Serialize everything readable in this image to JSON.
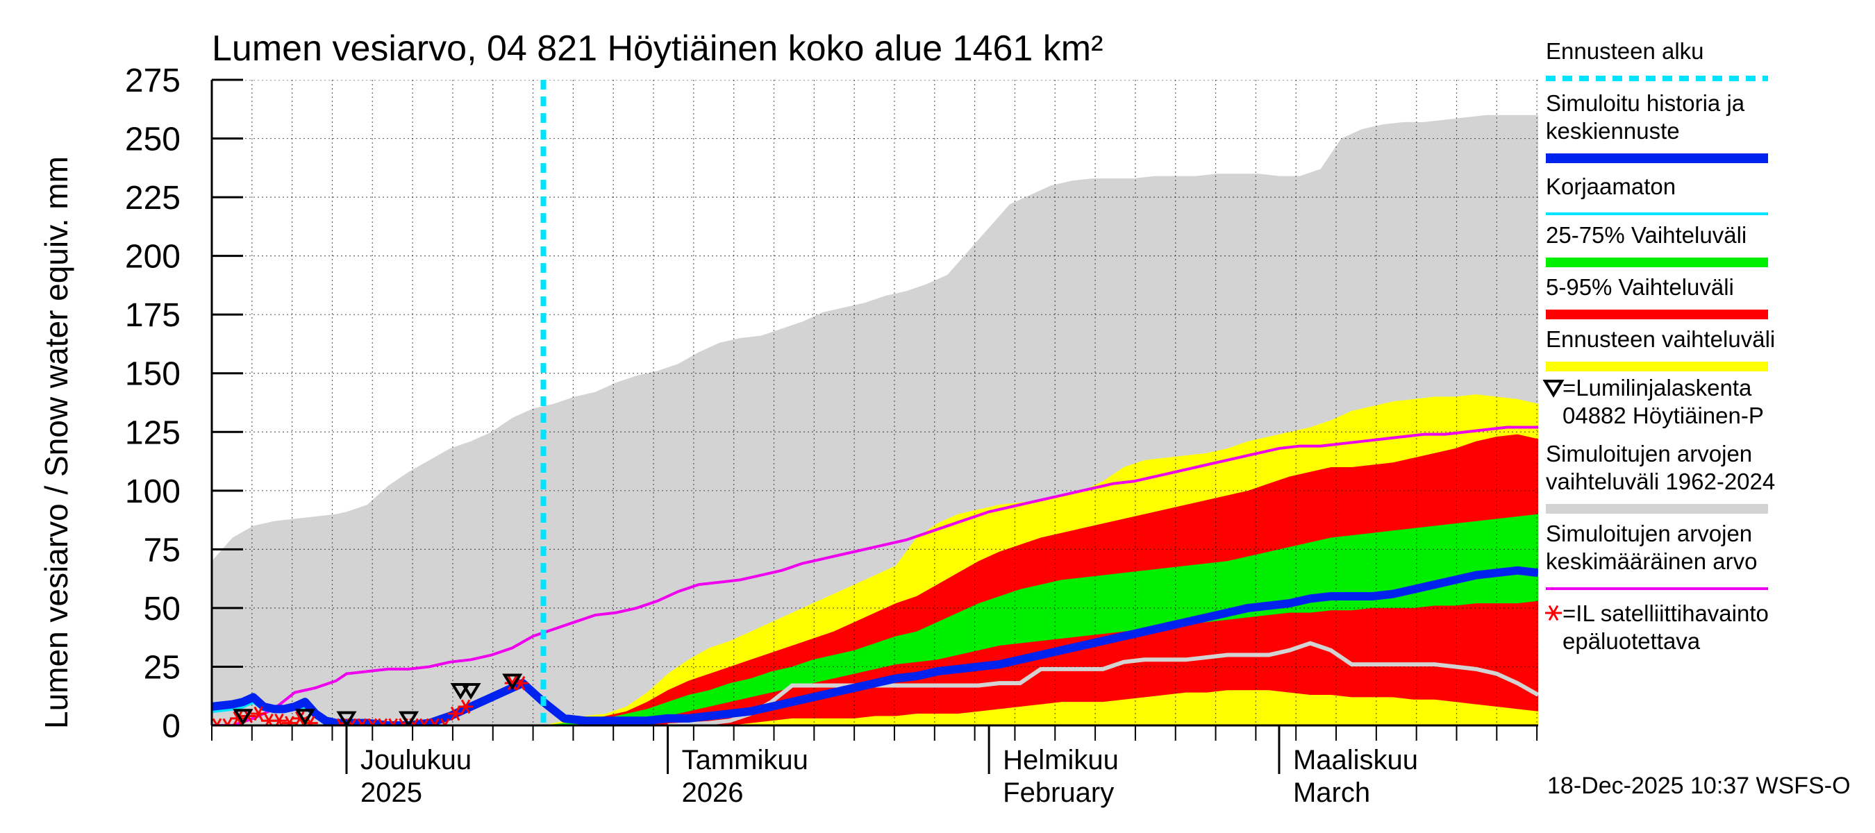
{
  "chart_data": {
    "type": "area",
    "title": "Lumen vesiarvo, 04 821 Höytiäinen koko alue 1461 km²",
    "ylabel": "Lumen vesiarvo / Snow water equiv.    mm",
    "xlabel": "",
    "timestamp": "18-Dec-2025 10:37 WSFS-O",
    "ylim": [
      0,
      275
    ],
    "yticks": [
      0,
      25,
      50,
      75,
      100,
      125,
      150,
      175,
      200,
      225,
      250,
      275
    ],
    "xlim_days": [
      0,
      128
    ],
    "forecast_start_day": 32,
    "month_labels": [
      {
        "day": 13,
        "line1": "Joulukuu",
        "line2": "2025"
      },
      {
        "day": 44,
        "line1": "Tammikuu",
        "line2": "2026"
      },
      {
        "day": 75,
        "line1": "Helmikuu",
        "line2": "February"
      },
      {
        "day": 103,
        "line1": "Maaliskuu",
        "line2": "March"
      }
    ],
    "colors": {
      "hist_range": "#d3d3d3",
      "ennuste": "#ffff00",
      "p5_95": "#ff0000",
      "p25_75": "#00ee00",
      "simulated": "#0022ee",
      "uncorrected": "#00e5ff",
      "mean": "#ee00ee",
      "forecast_start": "#00e5ff",
      "satellite": "#ff0000",
      "snowline": "#000000"
    },
    "hist_range": {
      "x": [
        0,
        2,
        4,
        6,
        8,
        10,
        12,
        13,
        15,
        17,
        19,
        21,
        23,
        25,
        27,
        29,
        31,
        33,
        35,
        37,
        39,
        41,
        43,
        45,
        47,
        49,
        51,
        53,
        55,
        57,
        59,
        61,
        63,
        65,
        67,
        69,
        71,
        73,
        75,
        77,
        79,
        81,
        83,
        85,
        87,
        89,
        91,
        93,
        95,
        97,
        99,
        101,
        103,
        105,
        107,
        109,
        111,
        113,
        115,
        117,
        119,
        121,
        123,
        125,
        127,
        128
      ],
      "upper": [
        70,
        80,
        85,
        87,
        88,
        89,
        90,
        91,
        94,
        102,
        108,
        113,
        118,
        121,
        125,
        131,
        135,
        137,
        140,
        142,
        146,
        149,
        151,
        154,
        159,
        163,
        165,
        166,
        169,
        172,
        176,
        178,
        180,
        183,
        185,
        188,
        192,
        202,
        212,
        222,
        226,
        230,
        232,
        233,
        233,
        233,
        234,
        234,
        234,
        235,
        235,
        235,
        234,
        234,
        237,
        250,
        254,
        256,
        257,
        257,
        258,
        259,
        260,
        260,
        260,
        260
      ],
      "lower": [
        0,
        0,
        0,
        0,
        0,
        0,
        0,
        0,
        0,
        0,
        0,
        0,
        0,
        0,
        0,
        0,
        0,
        0,
        0,
        0,
        0,
        0,
        0,
        0,
        0,
        0,
        0,
        0,
        0,
        0,
        0,
        0,
        0,
        0,
        0,
        0,
        0,
        0,
        0,
        0,
        0,
        0,
        0,
        0,
        0,
        0,
        0,
        0,
        0,
        0,
        0,
        0,
        0,
        0,
        0,
        0,
        0,
        0,
        0,
        0,
        0,
        0,
        0,
        0,
        0,
        0
      ]
    },
    "forecast": {
      "x": [
        32,
        34,
        36,
        38,
        40,
        42,
        44,
        46,
        48,
        50,
        52,
        54,
        56,
        58,
        60,
        62,
        64,
        66,
        68,
        70,
        72,
        74,
        76,
        78,
        80,
        82,
        84,
        86,
        88,
        90,
        92,
        94,
        96,
        98,
        100,
        102,
        104,
        106,
        108,
        110,
        112,
        114,
        116,
        118,
        120,
        122,
        124,
        126,
        128
      ],
      "ennuste_upper": [
        0,
        2,
        4,
        5,
        8,
        14,
        22,
        28,
        33,
        36,
        40,
        44,
        48,
        52,
        56,
        60,
        64,
        68,
        80,
        86,
        90,
        92,
        94,
        95,
        96,
        98,
        100,
        104,
        110,
        113,
        114,
        115,
        116,
        118,
        121,
        123,
        125,
        127,
        130,
        134,
        136,
        138,
        139,
        140,
        140,
        141,
        140,
        139,
        137
      ],
      "ennuste_lower": [
        0,
        0,
        0,
        0,
        0,
        0,
        0,
        0,
        0,
        0,
        0,
        0,
        0,
        0,
        0,
        0,
        0,
        0,
        0,
        0,
        0,
        0,
        0,
        0,
        0,
        0,
        0,
        0,
        0,
        0,
        0,
        0,
        0,
        0,
        0,
        0,
        0,
        0,
        0,
        0,
        0,
        0,
        0,
        0,
        0,
        0,
        0,
        0,
        0
      ],
      "p95": [
        0,
        1,
        2,
        4,
        6,
        10,
        15,
        19,
        22,
        25,
        28,
        31,
        34,
        37,
        40,
        44,
        48,
        52,
        55,
        60,
        65,
        70,
        74,
        77,
        80,
        82,
        84,
        86,
        88,
        90,
        92,
        94,
        96,
        98,
        100,
        103,
        106,
        108,
        110,
        110,
        111,
        112,
        114,
        116,
        118,
        121,
        123,
        124,
        122
      ],
      "p5": [
        0,
        0,
        0,
        0,
        0,
        0,
        0,
        0,
        0,
        0,
        1,
        2,
        3,
        3,
        3,
        3,
        4,
        4,
        5,
        5,
        5,
        6,
        7,
        8,
        9,
        10,
        10,
        10,
        11,
        12,
        13,
        14,
        14,
        15,
        15,
        15,
        14,
        13,
        13,
        12,
        12,
        12,
        11,
        11,
        10,
        9,
        8,
        7,
        6
      ],
      "p75": [
        0,
        1,
        2,
        3,
        5,
        7,
        10,
        13,
        15,
        18,
        20,
        23,
        25,
        28,
        30,
        32,
        35,
        38,
        40,
        44,
        48,
        52,
        55,
        58,
        60,
        62,
        63,
        64,
        65,
        66,
        67,
        68,
        69,
        70,
        72,
        74,
        76,
        78,
        80,
        81,
        82,
        83,
        84,
        85,
        86,
        87,
        88,
        89,
        90
      ],
      "p25": [
        0,
        0,
        0,
        1,
        2,
        3,
        4,
        6,
        8,
        10,
        12,
        14,
        16,
        18,
        20,
        22,
        24,
        26,
        27,
        28,
        30,
        32,
        34,
        35,
        36,
        37,
        38,
        39,
        40,
        41,
        42,
        43,
        44,
        45,
        46,
        47,
        48,
        48,
        49,
        49,
        50,
        50,
        50,
        51,
        51,
        52,
        52,
        52,
        53
      ]
    },
    "mean": {
      "x": [
        0,
        2,
        4,
        6,
        8,
        10,
        12,
        13,
        15,
        17,
        19,
        21,
        23,
        25,
        27,
        29,
        31,
        33,
        35,
        37,
        39,
        41,
        43,
        45,
        47,
        49,
        51,
        53,
        55,
        57,
        59,
        61,
        63,
        65,
        67,
        69,
        71,
        73,
        75,
        77,
        79,
        81,
        83,
        85,
        87,
        89,
        91,
        93,
        95,
        97,
        99,
        101,
        103,
        105,
        107,
        109,
        111,
        113,
        115,
        117,
        119,
        121,
        123,
        125,
        127,
        128
      ],
      "values": [
        0,
        0,
        3,
        7,
        14,
        16,
        19,
        22,
        23,
        24,
        24,
        25,
        27,
        28,
        30,
        33,
        38,
        41,
        44,
        47,
        48,
        50,
        53,
        57,
        60,
        61,
        62,
        64,
        66,
        69,
        71,
        73,
        75,
        77,
        79,
        82,
        85,
        88,
        91,
        93,
        95,
        97,
        99,
        101,
        103,
        104,
        106,
        108,
        110,
        112,
        114,
        116,
        118,
        119,
        119,
        120,
        121,
        122,
        123,
        124,
        124,
        125,
        126,
        127,
        127,
        127
      ]
    },
    "simulated": {
      "x": [
        0,
        2,
        3,
        4,
        5,
        6,
        7,
        8,
        9,
        10,
        11,
        12,
        13,
        14,
        15,
        17,
        18,
        19,
        21,
        23,
        25,
        27,
        28,
        29,
        30,
        31,
        32,
        34,
        36,
        38,
        40,
        42,
        44,
        46,
        48,
        50,
        52,
        54,
        56,
        58,
        60,
        62,
        64,
        66,
        68,
        70,
        72,
        74,
        76,
        78,
        80,
        82,
        84,
        86,
        88,
        90,
        92,
        94,
        96,
        98,
        100,
        102,
        104,
        106,
        108,
        110,
        112,
        114,
        116,
        118,
        120,
        122,
        124,
        126,
        128
      ],
      "values": [
        8,
        9,
        10,
        12,
        8,
        7,
        7,
        8,
        10,
        5,
        2,
        1,
        1,
        1,
        1,
        0,
        0,
        0,
        1,
        4,
        8,
        12,
        14,
        16,
        18,
        14,
        10,
        3,
        2,
        2,
        2,
        2,
        3,
        3,
        4,
        5,
        6,
        8,
        10,
        12,
        14,
        16,
        18,
        20,
        21,
        23,
        24,
        25,
        26,
        28,
        30,
        32,
        34,
        36,
        38,
        40,
        42,
        44,
        46,
        48,
        50,
        51,
        52,
        54,
        55,
        55,
        55,
        56,
        58,
        60,
        62,
        64,
        65,
        66,
        65
      ]
    },
    "uncorrected": {
      "x": [
        0,
        2,
        3,
        4,
        5,
        6,
        7,
        8,
        9,
        10,
        11,
        12,
        13,
        15,
        17,
        19,
        21,
        23,
        25,
        27,
        28,
        29,
        30,
        31,
        32,
        34,
        36,
        38,
        40,
        42,
        44,
        46,
        48,
        50
      ],
      "values": [
        6,
        7,
        8,
        10,
        7,
        6,
        6,
        7,
        8,
        4,
        2,
        1,
        1,
        1,
        0,
        0,
        1,
        3,
        7,
        11,
        13,
        15,
        17,
        13,
        9,
        3,
        2,
        2,
        2,
        2,
        2,
        3,
        3,
        4
      ]
    },
    "lower_sim": {
      "x": [
        44,
        48,
        50,
        52,
        54,
        56,
        58,
        60,
        62,
        64,
        66,
        68,
        70,
        72,
        74,
        76,
        78,
        80,
        82,
        84,
        86,
        88,
        90,
        92,
        94,
        96,
        98,
        100,
        102,
        104,
        106,
        108,
        110,
        112,
        114,
        116,
        118,
        120,
        122,
        124,
        126,
        128
      ],
      "values": [
        0,
        1,
        2,
        5,
        10,
        17,
        17,
        17,
        17,
        17,
        17,
        17,
        17,
        17,
        17,
        18,
        18,
        24,
        24,
        24,
        24,
        27,
        28,
        28,
        28,
        29,
        30,
        30,
        30,
        32,
        35,
        32,
        26,
        26,
        26,
        26,
        26,
        25,
        24,
        22,
        18,
        13
      ]
    },
    "snowline_marks": [
      {
        "day": 3,
        "value": 2
      },
      {
        "day": 9,
        "value": 2
      },
      {
        "day": 13,
        "value": 1
      },
      {
        "day": 19,
        "value": 1
      },
      {
        "day": 24,
        "value": 13
      },
      {
        "day": 25,
        "value": 13
      },
      {
        "day": 29,
        "value": 17
      }
    ],
    "satellite_marks": [
      {
        "day": 0.5,
        "value": 0
      },
      {
        "day": 1.5,
        "value": 0
      },
      {
        "day": 2.5,
        "value": 3
      },
      {
        "day": 3.5,
        "value": 4
      },
      {
        "day": 4.5,
        "value": 5
      },
      {
        "day": 5.5,
        "value": 2
      },
      {
        "day": 6.5,
        "value": 2
      },
      {
        "day": 7.5,
        "value": 1
      },
      {
        "day": 8.5,
        "value": 3
      },
      {
        "day": 9.5,
        "value": 1
      },
      {
        "day": 12.5,
        "value": 0
      },
      {
        "day": 13.5,
        "value": 0
      },
      {
        "day": 14.5,
        "value": 0
      },
      {
        "day": 15.5,
        "value": 0
      },
      {
        "day": 16.5,
        "value": 0
      },
      {
        "day": 17.5,
        "value": 0
      },
      {
        "day": 18.5,
        "value": 0
      },
      {
        "day": 19.5,
        "value": 0
      },
      {
        "day": 20.5,
        "value": 0
      },
      {
        "day": 21.5,
        "value": 0
      },
      {
        "day": 22.5,
        "value": 0
      },
      {
        "day": 23.5,
        "value": 5
      },
      {
        "day": 24.5,
        "value": 8
      },
      {
        "day": 29,
        "value": 18
      },
      {
        "day": 29.8,
        "value": 18
      }
    ],
    "legend": [
      {
        "label": "Ennusteen alku",
        "kind": "dashed",
        "color": "#00e5ff"
      },
      {
        "label": "Simuloitu historia ja\nkeskiennuste",
        "kind": "line",
        "color": "#0022ee",
        "width": 14
      },
      {
        "label": "Korjaamaton",
        "kind": "line",
        "color": "#00e5ff",
        "width": 4
      },
      {
        "label": "25-75% Vaihteluväli",
        "kind": "line",
        "color": "#00ee00",
        "width": 14
      },
      {
        "label": "5-95% Vaihteluväli",
        "kind": "line",
        "color": "#ff0000",
        "width": 14
      },
      {
        "label": "Ennusteen vaihteluväli",
        "kind": "line",
        "color": "#ffff00",
        "width": 14
      },
      {
        "label": "=Lumilinjalaskenta\n04882 Höytiäinen-P",
        "kind": "triangle",
        "color": "#000000"
      },
      {
        "label": "Simuloitujen arvojen\nvaihteluväli 1962-2024",
        "kind": "line",
        "color": "#d3d3d3",
        "width": 14
      },
      {
        "label": "Simuloitujen arvojen\nkeskimääräinen arvo",
        "kind": "line",
        "color": "#ee00ee",
        "width": 4
      },
      {
        "label": "=IL satelliittihavainto\nepäluotettava",
        "kind": "star",
        "color": "#ff0000"
      }
    ]
  }
}
